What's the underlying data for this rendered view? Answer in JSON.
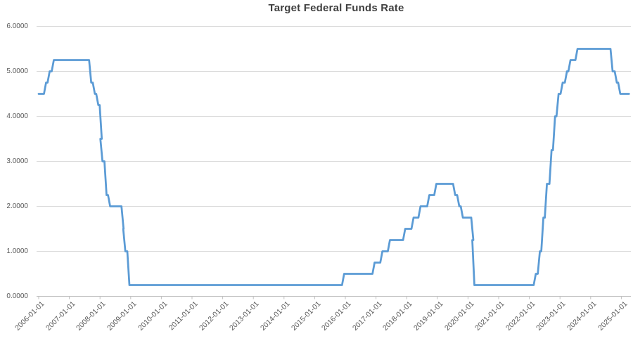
{
  "chart": {
    "title": "Target Federal Funds Rate"
  },
  "chart_data": {
    "type": "line",
    "title": "Target Federal Funds Rate",
    "series_name": "Target Federal Funds Rate",
    "line_color": "#5B9BD5",
    "gridline_color": "#D9D9D9",
    "axis_color": "#BFBFBF",
    "label_color": "#595959",
    "title_color": "#404040",
    "grid": true,
    "legend": "none",
    "ylim": [
      0.0,
      6.0
    ],
    "y_tick_labels": [
      "0.0000",
      "1.0000",
      "2.0000",
      "3.0000",
      "4.0000",
      "5.0000",
      "6.0000"
    ],
    "x_tick_labels": [
      "2006-01-01",
      "2007-01-01",
      "2008-01-01",
      "2009-01-01",
      "2010-01-01",
      "2011-01-01",
      "2012-01-01",
      "2013-01-01",
      "2014-01-01",
      "2015-01-01",
      "2016-01-01",
      "2017-01-01",
      "2018-01-01",
      "2019-01-01",
      "2020-01-01",
      "2021-01-01",
      "2022-01-01",
      "2023-01-01",
      "2024-01-01",
      "2025-01-01"
    ],
    "x_range_years": [
      2006.0,
      2025.3
    ],
    "points": [
      [
        "2006-01-01",
        4.5
      ],
      [
        "2006-03-28",
        4.75
      ],
      [
        "2006-05-10",
        5.0
      ],
      [
        "2006-06-29",
        5.25
      ],
      [
        "2007-09-18",
        4.75
      ],
      [
        "2007-10-31",
        4.5
      ],
      [
        "2007-12-11",
        4.25
      ],
      [
        "2008-01-22",
        3.5
      ],
      [
        "2008-01-30",
        3.0
      ],
      [
        "2008-03-18",
        2.25
      ],
      [
        "2008-04-30",
        2.0
      ],
      [
        "2008-10-08",
        1.5
      ],
      [
        "2008-10-29",
        1.0
      ],
      [
        "2008-12-16",
        0.25
      ],
      [
        "2015-12-17",
        0.5
      ],
      [
        "2016-12-15",
        0.75
      ],
      [
        "2017-03-16",
        1.0
      ],
      [
        "2017-06-15",
        1.25
      ],
      [
        "2017-12-14",
        1.5
      ],
      [
        "2018-03-22",
        1.75
      ],
      [
        "2018-06-14",
        2.0
      ],
      [
        "2018-09-27",
        2.25
      ],
      [
        "2018-12-20",
        2.5
      ],
      [
        "2019-08-01",
        2.25
      ],
      [
        "2019-09-19",
        2.0
      ],
      [
        "2019-10-31",
        1.75
      ],
      [
        "2020-03-04",
        1.25
      ],
      [
        "2020-03-16",
        0.25
      ],
      [
        "2022-03-17",
        0.5
      ],
      [
        "2022-05-05",
        1.0
      ],
      [
        "2022-06-16",
        1.75
      ],
      [
        "2022-07-28",
        2.5
      ],
      [
        "2022-09-22",
        3.25
      ],
      [
        "2022-11-03",
        4.0
      ],
      [
        "2022-12-15",
        4.5
      ],
      [
        "2023-02-02",
        4.75
      ],
      [
        "2023-03-23",
        5.0
      ],
      [
        "2023-05-04",
        5.25
      ],
      [
        "2023-07-27",
        5.5
      ],
      [
        "2024-09-19",
        5.0
      ],
      [
        "2024-11-08",
        4.75
      ],
      [
        "2024-12-19",
        4.5
      ],
      [
        "2025-04-01",
        4.5
      ]
    ]
  }
}
